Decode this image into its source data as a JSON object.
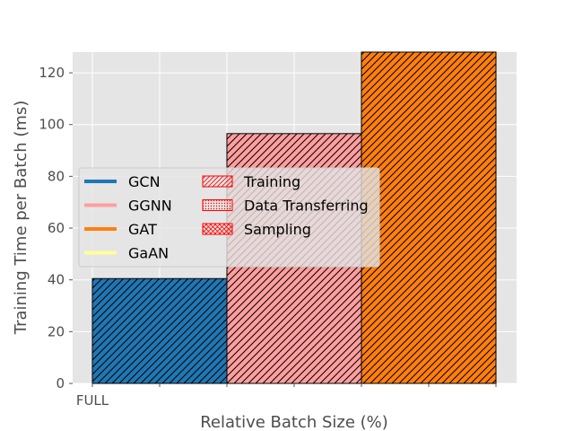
{
  "chart_data": {
    "type": "bar",
    "xlabel": "Relative Batch Size (%)",
    "ylabel": "Training Time per Batch (ms)",
    "ylim": [
      0,
      128
    ],
    "y_ticks": [
      0,
      20,
      40,
      60,
      80,
      100,
      120
    ],
    "x_tick_labels": [
      "FULL",
      "",
      "",
      "",
      "",
      "",
      ""
    ],
    "grid": true,
    "background": "#e5e5e5",
    "categories": [
      "FULL"
    ],
    "series": [
      {
        "name": "GCN",
        "color": "#1f77b4",
        "values": [
          40.5
        ],
        "hatch": "dense-diagonal"
      },
      {
        "name": "GGNN",
        "color": "#ff9e9e",
        "values": [
          96.5
        ],
        "hatch": "dense-diagonal"
      },
      {
        "name": "GAT",
        "color": "#ff7f0e",
        "values": [
          128
        ],
        "hatch": "dense-diagonal"
      },
      {
        "name": "GaAN",
        "color": "#ffff99",
        "values": [
          0
        ],
        "hatch": "dense-diagonal"
      }
    ],
    "legend": {
      "placement": "center-left",
      "models": [
        "GCN",
        "GGNN",
        "GAT",
        "GaAN"
      ],
      "phases": [
        {
          "name": "Training",
          "hatch": "diagonal",
          "color": "#ff0000"
        },
        {
          "name": "Data Transferring",
          "hatch": "dots",
          "color": "#ff0000"
        },
        {
          "name": "Sampling",
          "hatch": "cross",
          "color": "#ff0000"
        }
      ]
    }
  }
}
